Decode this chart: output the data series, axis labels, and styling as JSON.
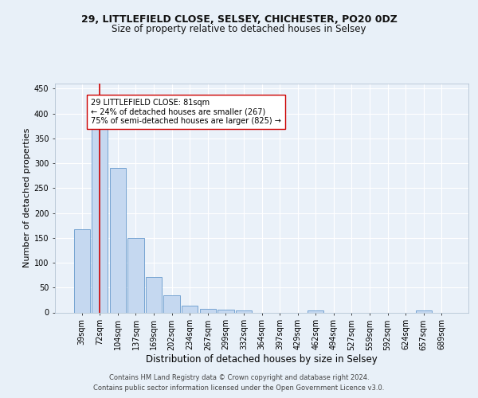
{
  "title_line1": "29, LITTLEFIELD CLOSE, SELSEY, CHICHESTER, PO20 0DZ",
  "title_line2": "Size of property relative to detached houses in Selsey",
  "xlabel": "Distribution of detached houses by size in Selsey",
  "ylabel": "Number of detached properties",
  "footer_line1": "Contains HM Land Registry data © Crown copyright and database right 2024.",
  "footer_line2": "Contains public sector information licensed under the Open Government Licence v3.0.",
  "bar_labels": [
    "39sqm",
    "72sqm",
    "104sqm",
    "137sqm",
    "169sqm",
    "202sqm",
    "234sqm",
    "267sqm",
    "299sqm",
    "332sqm",
    "364sqm",
    "397sqm",
    "429sqm",
    "462sqm",
    "494sqm",
    "527sqm",
    "559sqm",
    "592sqm",
    "624sqm",
    "657sqm",
    "689sqm"
  ],
  "bar_values": [
    167,
    378,
    290,
    149,
    72,
    35,
    14,
    7,
    6,
    4,
    0,
    0,
    0,
    4,
    0,
    0,
    0,
    0,
    0,
    4,
    0
  ],
  "bar_color": "#c5d8f0",
  "bar_edge_color": "#6699cc",
  "vline_x": 1,
  "vline_color": "#cc0000",
  "annotation_text": "29 LITTLEFIELD CLOSE: 81sqm\n← 24% of detached houses are smaller (267)\n75% of semi-detached houses are larger (825) →",
  "annotation_box_color": "#ffffff",
  "annotation_box_edge": "#cc0000",
  "ylim": [
    0,
    460
  ],
  "yticks": [
    0,
    50,
    100,
    150,
    200,
    250,
    300,
    350,
    400,
    450
  ],
  "bg_color": "#e8f0f8",
  "plot_bg_color": "#eaf1f9",
  "grid_color": "#ffffff",
  "title1_fontsize": 9,
  "title2_fontsize": 8.5,
  "xlabel_fontsize": 8.5,
  "ylabel_fontsize": 8,
  "tick_fontsize": 7,
  "annotation_fontsize": 7,
  "footer_fontsize": 6
}
